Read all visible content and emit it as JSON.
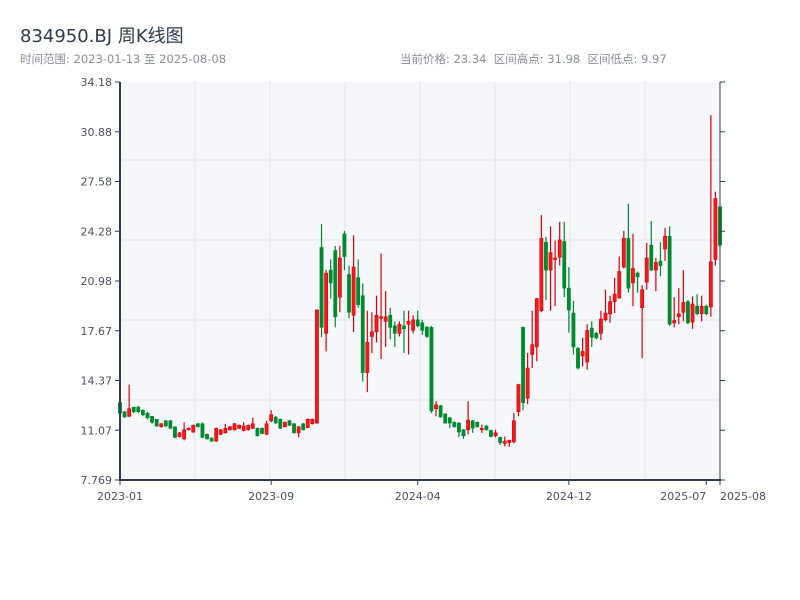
{
  "header": {
    "title": "834950.BJ 周K线图",
    "range_label": "时间范围: 2023-01-13 至 2025-08-08",
    "stats_label": "当前价格: 23.34  区间高点: 31.98  区间低点: 9.97"
  },
  "chart_data": {
    "type": "candlestick",
    "title": "834950.BJ 周K线图",
    "date_range": [
      "2023-01-13",
      "2025-08-08"
    ],
    "current_price": 23.34,
    "period_high": 31.98,
    "period_low": 9.97,
    "ylim": [
      7.769,
      34.18
    ],
    "yticks": [
      "34.18",
      "30.88",
      "27.58",
      "24.28",
      "20.98",
      "17.67",
      "14.37",
      "11.07",
      "7.769"
    ],
    "xticks": [
      "2023-01",
      "2023-09",
      "2024-04",
      "2024-12",
      "2025-07",
      "2025-08"
    ],
    "grid": true,
    "colors": {
      "up": "#d9000b",
      "down": "#00892f",
      "plot_bg": "#f5f7fa",
      "axis": "#323c4c"
    },
    "candle_fields": [
      "open",
      "close",
      "low",
      "high"
    ],
    "candles": [
      [
        12.9,
        12.2,
        12.1,
        13.0
      ],
      [
        12.3,
        11.95,
        11.9,
        12.35
      ],
      [
        12.0,
        12.5,
        11.95,
        14.1
      ],
      [
        12.6,
        12.3,
        12.2,
        12.6
      ],
      [
        12.6,
        12.3,
        12.2,
        12.7
      ],
      [
        12.4,
        12.1,
        12.0,
        12.45
      ],
      [
        12.2,
        11.9,
        11.8,
        12.3
      ],
      [
        12.0,
        11.6,
        11.5,
        12.0
      ],
      [
        11.8,
        11.35,
        11.3,
        11.8
      ],
      [
        11.3,
        11.5,
        11.25,
        11.55
      ],
      [
        11.7,
        11.35,
        11.3,
        11.75
      ],
      [
        11.7,
        11.2,
        11.15,
        11.75
      ],
      [
        11.3,
        10.6,
        10.55,
        11.3
      ],
      [
        10.65,
        10.9,
        10.6,
        10.95
      ],
      [
        10.5,
        11.1,
        10.4,
        11.6
      ],
      [
        11.1,
        11.2,
        11.05,
        11.25
      ],
      [
        10.95,
        11.4,
        10.9,
        11.45
      ],
      [
        11.5,
        11.3,
        11.25,
        11.55
      ],
      [
        11.5,
        10.6,
        10.55,
        11.6
      ],
      [
        10.8,
        10.5,
        10.45,
        10.85
      ],
      [
        10.55,
        10.35,
        10.3,
        10.6
      ],
      [
        10.35,
        11.2,
        10.3,
        11.25
      ],
      [
        10.8,
        11.1,
        10.75,
        11.15
      ],
      [
        10.9,
        11.2,
        10.85,
        11.5
      ],
      [
        11.1,
        11.3,
        11.05,
        11.35
      ],
      [
        11.1,
        11.5,
        11.05,
        11.55
      ],
      [
        11.2,
        11.4,
        11.15,
        11.45
      ],
      [
        11.05,
        11.35,
        11.0,
        11.6
      ],
      [
        11.1,
        11.4,
        11.05,
        11.45
      ],
      [
        11.2,
        11.5,
        11.15,
        11.9
      ],
      [
        11.2,
        10.7,
        10.65,
        11.25
      ],
      [
        11.2,
        10.85,
        10.8,
        11.25
      ],
      [
        10.8,
        11.5,
        10.75,
        11.7
      ],
      [
        11.7,
        12.1,
        11.6,
        12.4
      ],
      [
        11.95,
        11.55,
        11.5,
        12.0
      ],
      [
        11.8,
        11.2,
        11.15,
        11.85
      ],
      [
        11.3,
        11.6,
        11.25,
        11.65
      ],
      [
        11.7,
        11.4,
        11.35,
        11.75
      ],
      [
        11.5,
        10.9,
        10.85,
        11.55
      ],
      [
        10.9,
        11.3,
        10.6,
        11.35
      ],
      [
        11.5,
        11.1,
        11.05,
        11.55
      ],
      [
        11.25,
        11.8,
        11.2,
        11.85
      ],
      [
        11.5,
        11.8,
        11.45,
        11.85
      ],
      [
        11.55,
        19.05,
        11.5,
        19.1
      ],
      [
        23.2,
        17.9,
        17.25,
        24.75
      ],
      [
        17.5,
        21.5,
        16.3,
        21.7
      ],
      [
        21.7,
        20.85,
        19.8,
        22.4
      ],
      [
        23.0,
        18.6,
        17.9,
        23.3
      ],
      [
        19.9,
        22.5,
        18.9,
        23.3
      ],
      [
        24.1,
        22.6,
        21.7,
        24.3
      ],
      [
        21.4,
        18.9,
        18.5,
        22.0
      ],
      [
        18.7,
        21.9,
        17.6,
        24.0
      ],
      [
        21.2,
        19.4,
        19.2,
        22.4
      ],
      [
        20.0,
        14.9,
        14.3,
        20.8
      ],
      [
        14.9,
        16.9,
        13.6,
        19.0
      ],
      [
        17.3,
        17.6,
        16.2,
        18.9
      ],
      [
        17.6,
        18.7,
        16.9,
        20.0
      ],
      [
        18.5,
        18.6,
        15.8,
        22.8
      ],
      [
        18.3,
        18.6,
        16.6,
        20.3
      ],
      [
        18.7,
        17.9,
        17.1,
        19.2
      ],
      [
        18.0,
        17.5,
        16.6,
        18.3
      ],
      [
        17.5,
        18.1,
        17.3,
        18.3
      ],
      [
        18.0,
        17.8,
        16.2,
        19.0
      ],
      [
        18.1,
        18.3,
        16.1,
        19.0
      ],
      [
        17.7,
        18.4,
        17.5,
        18.7
      ],
      [
        18.4,
        18.0,
        17.9,
        19.0
      ],
      [
        18.2,
        17.7,
        17.4,
        18.4
      ],
      [
        17.9,
        17.3,
        17.2,
        18.0
      ],
      [
        17.9,
        12.35,
        12.2,
        18.0
      ],
      [
        12.5,
        12.75,
        12.0,
        13.0
      ],
      [
        12.7,
        11.95,
        11.9,
        12.75
      ],
      [
        12.15,
        11.55,
        11.5,
        12.2
      ],
      [
        11.9,
        11.55,
        11.2,
        11.95
      ],
      [
        11.6,
        11.3,
        11.25,
        11.65
      ],
      [
        11.55,
        10.95,
        10.6,
        11.6
      ],
      [
        11.1,
        10.7,
        10.5,
        11.15
      ],
      [
        11.1,
        11.75,
        10.8,
        13.0
      ],
      [
        11.7,
        11.2,
        10.9,
        11.75
      ],
      [
        11.6,
        11.3,
        11.25,
        11.65
      ],
      [
        11.1,
        11.2,
        10.9,
        11.45
      ],
      [
        11.35,
        11.1,
        11.05,
        11.4
      ],
      [
        11.05,
        10.65,
        10.6,
        11.1
      ],
      [
        10.7,
        10.9,
        10.6,
        11.1
      ],
      [
        10.6,
        10.25,
        10.1,
        10.65
      ],
      [
        10.2,
        10.35,
        10.0,
        10.65
      ],
      [
        10.25,
        10.4,
        9.97,
        10.45
      ],
      [
        10.3,
        11.7,
        10.2,
        12.2
      ],
      [
        12.3,
        14.1,
        12.0,
        14.15
      ],
      [
        17.9,
        12.9,
        12.4,
        17.95
      ],
      [
        13.2,
        15.2,
        12.8,
        16.2
      ],
      [
        16.1,
        16.75,
        15.2,
        19.0
      ],
      [
        16.6,
        19.8,
        15.65,
        19.85
      ],
      [
        19.0,
        23.8,
        18.9,
        25.35
      ],
      [
        23.55,
        21.7,
        19.7,
        23.9
      ],
      [
        21.7,
        22.85,
        19.0,
        24.6
      ],
      [
        22.4,
        22.5,
        19.3,
        23.65
      ],
      [
        22.55,
        23.7,
        22.0,
        24.9
      ],
      [
        23.6,
        20.5,
        19.9,
        24.9
      ],
      [
        20.5,
        19.05,
        17.55,
        21.9
      ],
      [
        18.85,
        16.6,
        16.1,
        19.65
      ],
      [
        16.5,
        15.2,
        15.1,
        16.6
      ],
      [
        16.0,
        16.3,
        15.3,
        17.2
      ],
      [
        15.6,
        17.7,
        15.1,
        18.1
      ],
      [
        17.85,
        17.25,
        16.6,
        18.3
      ],
      [
        17.5,
        17.2,
        17.1,
        17.6
      ],
      [
        17.5,
        18.45,
        17.05,
        19.0
      ],
      [
        18.4,
        18.85,
        18.3,
        20.4
      ],
      [
        18.8,
        19.6,
        18.2,
        20.0
      ],
      [
        19.6,
        20.1,
        18.85,
        21.2
      ],
      [
        19.85,
        21.6,
        19.8,
        22.6
      ],
      [
        21.9,
        23.8,
        21.8,
        24.3
      ],
      [
        23.8,
        20.5,
        20.2,
        26.1
      ],
      [
        20.85,
        21.8,
        19.3,
        24.1
      ],
      [
        21.5,
        21.25,
        20.2,
        21.6
      ],
      [
        19.2,
        20.4,
        15.85,
        20.7
      ],
      [
        20.9,
        22.5,
        20.4,
        23.5
      ],
      [
        23.35,
        21.7,
        21.65,
        24.95
      ],
      [
        21.7,
        22.2,
        20.3,
        22.5
      ],
      [
        22.3,
        22.0,
        21.3,
        23.55
      ],
      [
        23.1,
        23.95,
        22.3,
        24.5
      ],
      [
        23.95,
        18.1,
        18.0,
        24.6
      ],
      [
        18.2,
        18.35,
        17.9,
        19.9
      ],
      [
        18.6,
        18.8,
        18.1,
        20.5
      ],
      [
        18.9,
        19.55,
        18.3,
        21.7
      ],
      [
        19.6,
        18.2,
        18.1,
        19.7
      ],
      [
        18.25,
        19.45,
        17.8,
        19.95
      ],
      [
        19.3,
        18.8,
        18.7,
        20.1
      ],
      [
        18.8,
        19.3,
        18.3,
        20.0
      ],
      [
        19.3,
        18.8,
        18.7,
        19.4
      ],
      [
        19.25,
        22.25,
        18.6,
        31.98
      ],
      [
        22.4,
        26.45,
        22.0,
        26.9
      ],
      [
        25.9,
        23.34,
        23.1,
        25.9
      ]
    ]
  }
}
